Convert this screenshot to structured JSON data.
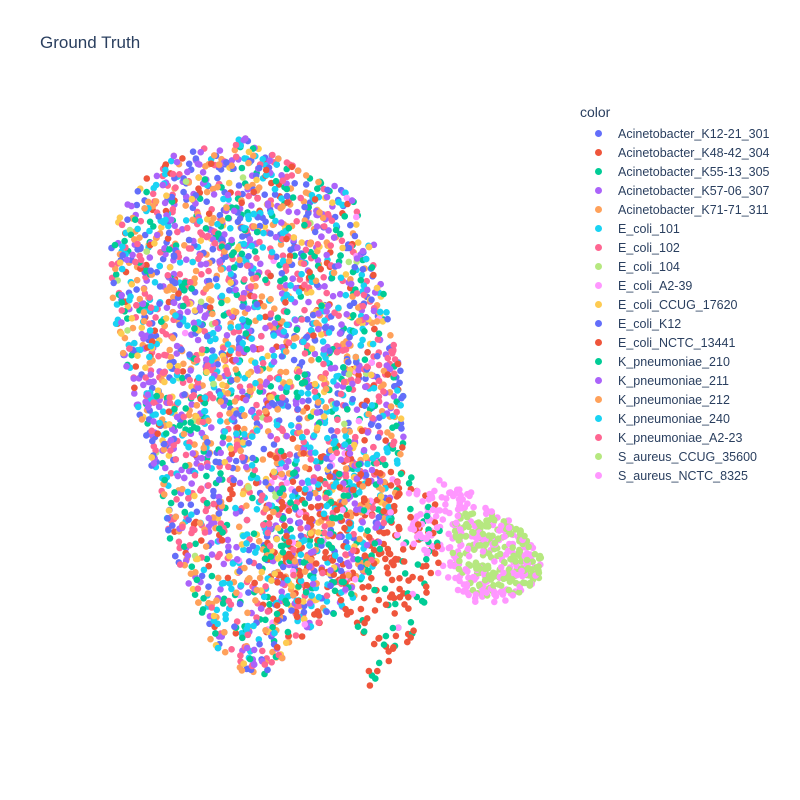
{
  "chart_data": {
    "type": "scatter",
    "title": "Ground Truth",
    "legend_title": "color",
    "legend_position": "right",
    "grid": false,
    "axes_visible": false,
    "xlim": [
      0,
      100
    ],
    "ylim": [
      0,
      100
    ],
    "series": [
      {
        "name": "Acinetobacter_K12-21_301",
        "color": "#636efa",
        "count": 260,
        "region": "main"
      },
      {
        "name": "Acinetobacter_K48-42_304",
        "color": "#EF553B",
        "count": 200,
        "region": "main-lower"
      },
      {
        "name": "Acinetobacter_K55-13_305",
        "color": "#00cc96",
        "count": 240,
        "region": "main"
      },
      {
        "name": "Acinetobacter_K57-06_307",
        "color": "#ab63fa",
        "count": 300,
        "region": "main"
      },
      {
        "name": "Acinetobacter_K71-71_311",
        "color": "#FFA15A",
        "count": 240,
        "region": "main"
      },
      {
        "name": "E_coli_101",
        "color": "#19d3f3",
        "count": 260,
        "region": "main"
      },
      {
        "name": "E_coli_102",
        "color": "#FF6692",
        "count": 280,
        "region": "main"
      },
      {
        "name": "E_coli_104",
        "color": "#B6E880",
        "count": 30,
        "region": "main"
      },
      {
        "name": "E_coli_A2-39",
        "color": "#FF97FF",
        "count": 60,
        "region": "main-lower"
      },
      {
        "name": "E_coli_CCUG_17620",
        "color": "#FECB52",
        "count": 220,
        "region": "main"
      },
      {
        "name": "E_coli_K12",
        "color": "#636efa",
        "count": 220,
        "region": "main"
      },
      {
        "name": "E_coli_NCTC_13441",
        "color": "#EF553B",
        "count": 220,
        "region": "main-lower"
      },
      {
        "name": "K_pneumoniae_210",
        "color": "#00cc96",
        "count": 220,
        "region": "main-lower"
      },
      {
        "name": "K_pneumoniae_211",
        "color": "#ab63fa",
        "count": 260,
        "region": "main"
      },
      {
        "name": "K_pneumoniae_212",
        "color": "#FFA15A",
        "count": 220,
        "region": "main"
      },
      {
        "name": "K_pneumoniae_240",
        "color": "#19d3f3",
        "count": 240,
        "region": "main"
      },
      {
        "name": "K_pneumoniae_A2-23",
        "color": "#FF6692",
        "count": 300,
        "region": "main"
      },
      {
        "name": "S_aureus_CCUG_35600",
        "color": "#B6E880",
        "count": 200,
        "region": "lobe-right"
      },
      {
        "name": "S_aureus_NCTC_8325",
        "color": "#FF97FF",
        "count": 240,
        "region": "lobe"
      }
    ]
  }
}
